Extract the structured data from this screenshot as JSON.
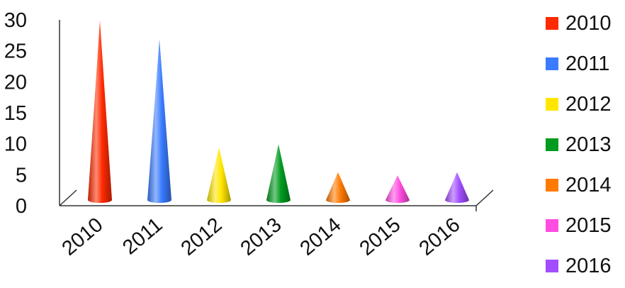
{
  "chart_data": {
    "type": "bar",
    "title": "",
    "xlabel": "",
    "ylabel": "",
    "categories": [
      "2010",
      "2011",
      "2012",
      "2013",
      "2014",
      "2015",
      "2016"
    ],
    "values": [
      29,
      26,
      8.5,
      9,
      4.5,
      4,
      4.5
    ],
    "colors": [
      "#ff2a00",
      "#3a7bff",
      "#ffe600",
      "#009b1f",
      "#ff7a00",
      "#ff4de1",
      "#a24dff"
    ],
    "ylim": [
      0,
      30
    ],
    "yticks": [
      0,
      5,
      10,
      15,
      20,
      25,
      30
    ],
    "legend": {
      "position": "right",
      "entries": [
        "2010",
        "2011",
        "2012",
        "2013",
        "2014",
        "2015",
        "2016"
      ]
    },
    "grid": false,
    "style": "3d-cone"
  }
}
